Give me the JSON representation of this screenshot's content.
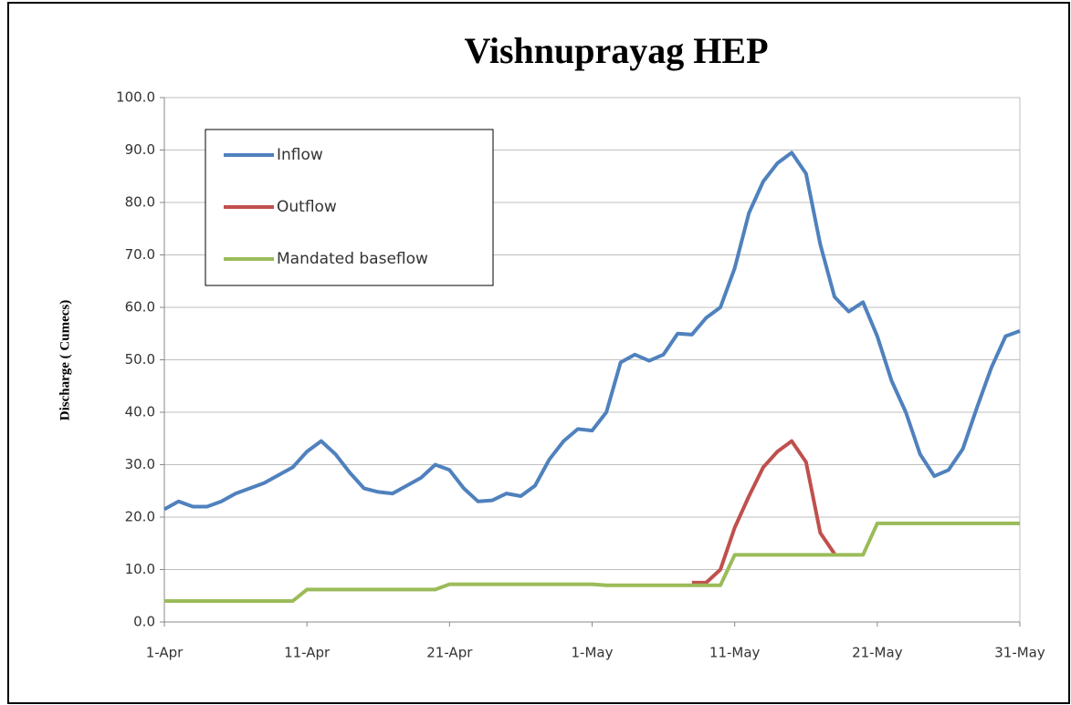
{
  "chart_data": {
    "type": "line",
    "title": "Vishnuprayag HEP",
    "y_label": "Discharge ( Cumecs)",
    "categories": [
      "1-Apr",
      null,
      null,
      null,
      null,
      null,
      null,
      null,
      null,
      null,
      "11-Apr",
      null,
      null,
      null,
      null,
      null,
      null,
      null,
      null,
      null,
      "21-Apr",
      null,
      null,
      null,
      null,
      null,
      null,
      null,
      null,
      null,
      "1-May",
      null,
      null,
      null,
      null,
      null,
      null,
      null,
      null,
      null,
      "11-May",
      null,
      null,
      null,
      null,
      null,
      null,
      null,
      null,
      null,
      "21-May",
      null,
      null,
      null,
      null,
      null,
      null,
      null,
      null,
      null,
      "31-May"
    ],
    "series": [
      {
        "name": "Inflow",
        "color": "#4f81bd",
        "values": [
          21.5,
          23,
          22,
          22,
          23,
          24.5,
          25.5,
          26.5,
          28,
          29.5,
          32.5,
          34.5,
          32,
          28.5,
          25.5,
          24.8,
          24.5,
          26,
          27.5,
          30,
          29,
          25.5,
          23,
          23.2,
          24.5,
          24,
          26,
          31,
          34.5,
          36.8,
          36.5,
          40,
          49.5,
          51,
          49.8,
          51,
          55,
          54.8,
          58,
          60,
          67.5,
          78,
          84,
          87.5,
          89.5,
          85.5,
          72,
          62,
          59.2,
          61,
          54.5,
          46,
          40,
          32,
          27.8,
          29,
          33,
          41,
          48.5,
          54.5,
          55.5
        ]
      },
      {
        "name": "Outflow",
        "color": "#c0504d",
        "values": [
          null,
          null,
          null,
          null,
          null,
          null,
          null,
          null,
          null,
          null,
          null,
          null,
          null,
          null,
          null,
          null,
          null,
          null,
          null,
          null,
          null,
          null,
          null,
          null,
          null,
          null,
          null,
          null,
          null,
          null,
          null,
          null,
          null,
          null,
          null,
          null,
          null,
          7.5,
          7.5,
          10,
          18,
          24,
          29.5,
          32.5,
          34.5,
          30.5,
          17,
          13,
          null,
          null,
          null,
          null,
          null,
          null,
          null,
          null,
          null,
          null,
          null,
          null,
          null
        ]
      },
      {
        "name": "Mandated baseflow",
        "color": "#9bbb59",
        "values": [
          4,
          4,
          4,
          4,
          4,
          4,
          4,
          4,
          4,
          4,
          6.2,
          6.2,
          6.2,
          6.2,
          6.2,
          6.2,
          6.2,
          6.2,
          6.2,
          6.2,
          7.2,
          7.2,
          7.2,
          7.2,
          7.2,
          7.2,
          7.2,
          7.2,
          7.2,
          7.2,
          7.2,
          7,
          7,
          7,
          7,
          7,
          7,
          7,
          7,
          7,
          12.8,
          12.8,
          12.8,
          12.8,
          12.8,
          12.8,
          12.8,
          12.8,
          12.8,
          12.8,
          18.8,
          18.8,
          18.8,
          18.8,
          18.8,
          18.8,
          18.8,
          18.8,
          18.8,
          18.8,
          18.8
        ]
      }
    ],
    "ylim": [
      0,
      100
    ],
    "yticks": [
      {
        "value": 0,
        "label": "0.0"
      },
      {
        "value": 10,
        "label": "10.0"
      },
      {
        "value": 20,
        "label": "20.0"
      },
      {
        "value": 30,
        "label": "30.0"
      },
      {
        "value": 40,
        "label": "40.0"
      },
      {
        "value": 50,
        "label": "50.0"
      },
      {
        "value": 60,
        "label": "60.0"
      },
      {
        "value": 70,
        "label": "70.0"
      },
      {
        "value": 80,
        "label": "80.0"
      },
      {
        "value": 90,
        "label": "90.0"
      },
      {
        "value": 100,
        "label": "100.0"
      }
    ],
    "grid": true,
    "legend": "top-left"
  }
}
